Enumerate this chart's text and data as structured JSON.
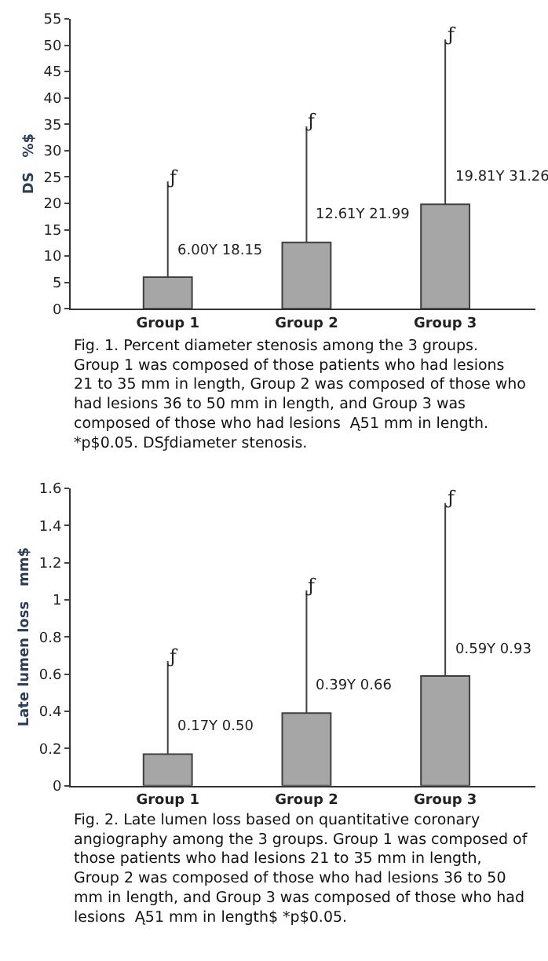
{
  "chart_data": [
    {
      "type": "bar",
      "ylabel": "DS   %$",
      "categories": [
        "Group 1",
        "Group 2",
        "Group 3"
      ],
      "values": [
        6.0,
        12.61,
        19.81
      ],
      "color": "#a6a6a6",
      "errors": [
        [
          6.0,
          24.16
        ],
        [
          12.61,
          34.6
        ],
        [
          19.81,
          51.07
        ]
      ],
      "ylim": [
        0,
        55
      ],
      "yticks": [
        0,
        5,
        10,
        15,
        20,
        25,
        30,
        35,
        40,
        45,
        50,
        55
      ],
      "annotations": [
        {
          "text": "ƒ",
          "x": "Group 1",
          "y": 24.15
        },
        {
          "text": "ƒ",
          "x": "Group 2",
          "y": 34.6
        },
        {
          "text": "ƒ",
          "x": "Group 3",
          "y": 51.07
        },
        {
          "text": "6.00Y 18.15",
          "x": "Group 1",
          "y": 6.0
        },
        {
          "text": "12.61Y 21.99",
          "x": "Group 2",
          "y": 12.61
        },
        {
          "text": "19.81Y 31.26",
          "x": "Group 3",
          "y": 19.81
        },
        "Fig. 1. Percent diameter stenosis among the 3 groups. Group 1 was composed of those patients who had lesions 21 to 35 mm in length, Group 2 was composed of those who had lesions 36 to 50 mm in length, and Group 3 was composed of those who had lesions  Ą51 mm in length. *p$0.05. DSƒdiameter stenosis."
      ]
    },
    {
      "type": "bar",
      "ylabel": "Late lumen loss   mm$",
      "categories": [
        "Group 1",
        "Group 2",
        "Group 3"
      ],
      "values": [
        0.17,
        0.39,
        0.59
      ],
      "color": "#a6a6a6",
      "errors": [
        [
          0.17,
          0.67
        ],
        [
          0.39,
          1.05
        ],
        [
          0.59,
          1.52
        ]
      ],
      "ylim": [
        0,
        1.6
      ],
      "yticks": [
        0,
        0.2,
        0.4,
        0.6,
        0.8,
        1,
        1.2,
        1.4,
        1.6
      ],
      "annotations": [
        {
          "text": "ƒ",
          "x": "Group 1",
          "y": 0.67
        },
        {
          "text": "ƒ",
          "x": "Group 2",
          "y": 1.05
        },
        {
          "text": "ƒ",
          "x": "Group 3",
          "y": 1.52
        },
        {
          "text": "0.17Y 0.50",
          "x": "Group 1",
          "y": 0.17
        },
        {
          "text": "0.39Y 0.66",
          "x": "Group 2",
          "y": 0.39
        },
        {
          "text": "0.59Y 0.93",
          "x": "Group 3",
          "y": 0.59
        },
        "Fig. 2. Late lumen loss based on quantitative coronary angiography among the 3 groups. Group 1 was composed of those patients who had lesions 21 to 35 mm in length, Group 2 was composed of those who had lesions 36 to 50 mm in length, and Group 3 was composed of those who had lesions  Ą51 mm in length$ *p$0.05."
      ]
    }
  ]
}
